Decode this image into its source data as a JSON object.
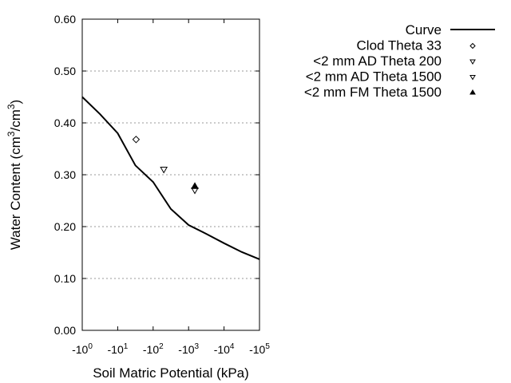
{
  "chart_data": {
    "type": "scatter",
    "xlabel": "Soil Matric Potential (kPa)",
    "ylabel": "Water Content (cm3/cm3)",
    "ylabel_parts": [
      "Water Content (cm",
      "3",
      "/cm",
      "3",
      ")"
    ],
    "x_scale": "log",
    "xlim": [
      1,
      100000
    ],
    "ylim": [
      0,
      0.6
    ],
    "x_ticks": [
      {
        "base": "-10",
        "exp": "0"
      },
      {
        "base": "-10",
        "exp": "1"
      },
      {
        "base": "-10",
        "exp": "2"
      },
      {
        "base": "-10",
        "exp": "3"
      },
      {
        "base": "-10",
        "exp": "4"
      },
      {
        "base": "-10",
        "exp": "5"
      }
    ],
    "y_ticks": [
      "0.00",
      "0.10",
      "0.20",
      "0.30",
      "0.40",
      "0.50",
      "0.60"
    ],
    "grid": "horizontal dotted",
    "legend_position": "right",
    "series": [
      {
        "name": "Curve",
        "type": "line",
        "color": "#000000",
        "x": [
          1,
          3.16,
          10,
          31.6,
          100,
          316,
          1000,
          3162,
          10000,
          31623,
          100000
        ],
        "y": [
          0.45,
          0.417,
          0.38,
          0.318,
          0.286,
          0.234,
          0.203,
          0.186,
          0.168,
          0.151,
          0.137
        ]
      },
      {
        "name": "Clod Theta 33",
        "marker": "diamond-open",
        "x": [
          33
        ],
        "y": [
          0.368
        ]
      },
      {
        "name": "<2 mm AD Theta 200",
        "marker": "triangle-down-open",
        "x": [
          200
        ],
        "y": [
          0.31
        ]
      },
      {
        "name": "<2 mm AD Theta 1500",
        "marker": "triangle-down-open",
        "x": [
          1500
        ],
        "y": [
          0.27
        ]
      },
      {
        "name": "<2 mm FM Theta 1500",
        "marker": "triangle-up-filled",
        "x": [
          1500
        ],
        "y": [
          0.278
        ]
      }
    ]
  }
}
